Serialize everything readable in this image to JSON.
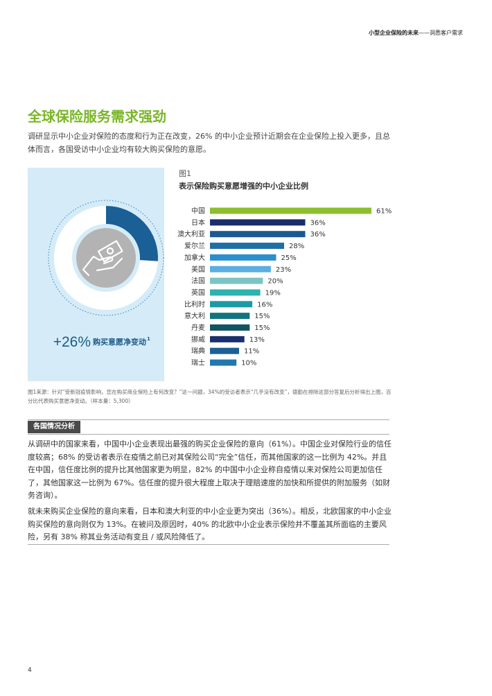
{
  "header": {
    "report_title": "小型企业保险的未来",
    "dash": "——",
    "subtitle": "洞悉客户需求"
  },
  "section": {
    "title": "全球保险服务需求强劲",
    "intro": "调研显示中小企业对保险的态度和行为正在改变，26% 的中小企业预计近期会在企业保险上投入更多，且总体而言，各国受访中小企业均有较大购买保险的意愿。"
  },
  "infographic": {
    "icon": "hand-with-banknote-icon",
    "percent_value": 26,
    "value_text": "+26%",
    "caption": "购买意愿净变动",
    "footnote": "1",
    "colors": {
      "panel": "#d5ecf8",
      "ring_fill": "#1a5f95",
      "ring_track": "#ffffff",
      "dotted_ring": "#4a8fc4",
      "inner_circle": "#b3b3b3"
    }
  },
  "figure": {
    "label": "图1",
    "title": "表示保险购买意愿增强的中小企业比例"
  },
  "chart_data": {
    "type": "bar",
    "orientation": "horizontal",
    "title": "表示保险购买意愿增强的中小企业比例",
    "categories": [
      "中国",
      "日本",
      "澳大利亚",
      "爱尔兰",
      "加拿大",
      "美国",
      "法国",
      "英国",
      "比利时",
      "意大利",
      "丹麦",
      "挪威",
      "瑞典",
      "瑞士"
    ],
    "values": [
      61,
      36,
      36,
      28,
      25,
      23,
      20,
      19,
      16,
      15,
      15,
      13,
      11,
      10
    ],
    "value_labels": [
      "61%",
      "36%",
      "36%",
      "28%",
      "25%",
      "23%",
      "20%",
      "19%",
      "16%",
      "15%",
      "15%",
      "13%",
      "11%",
      "10%"
    ],
    "colors": [
      "#8cbf2e",
      "#1a2e6b",
      "#1b5a8e",
      "#1f6fa6",
      "#2a8fcc",
      "#5aaee0",
      "#7cc4c4",
      "#2bb3ad",
      "#1b9aa5",
      "#12737e",
      "#0f5460",
      "#1a2f6d",
      "#1d5f94",
      "#2177b0"
    ],
    "xlim": [
      0,
      61
    ],
    "grid": false,
    "legend": "none"
  },
  "source_note": "图1来源：针对“受新冠疫情影响，您在购买商业保险上有何改变？”这一问题，34%的受访者表示“几乎没有改变”，德勤在排除这部分答复后分析得出上图，百分比代表购买意愿净变动。（样本量：5,300）",
  "analysis": {
    "label": "各国情况分析",
    "paragraphs": [
      "从调研中的国家来看，中国中小企业表现出最强的购买企业保险的意向（61%）。中国企业对保险行业的信任度较高；68% 的受访者表示在疫情之前已对其保险公司“完全”信任，而其他国家的这一比例为 42%。并且在中国，信任度比例的提升比其他国家更为明显，82% 的中国中小企业称自疫情以来对保险公司更加信任了，其他国家这一比例为 67%。信任度的提升很大程度上取决于理赔速度的加快和所提供的附加服务（如财务咨询）。",
      "就未来购买企业保险的意向来看，日本和澳大利亚的中小企业更为突出（36%）。相反，北欧国家的中小企业购买保险的意向则仅为 13%。在被问及原因时，40% 的北欧中小企业表示保险并不覆盖其所面临的主要风险，另有 38% 称其业务活动有变且 / 或风险降低了。"
    ]
  },
  "page_number": "4"
}
